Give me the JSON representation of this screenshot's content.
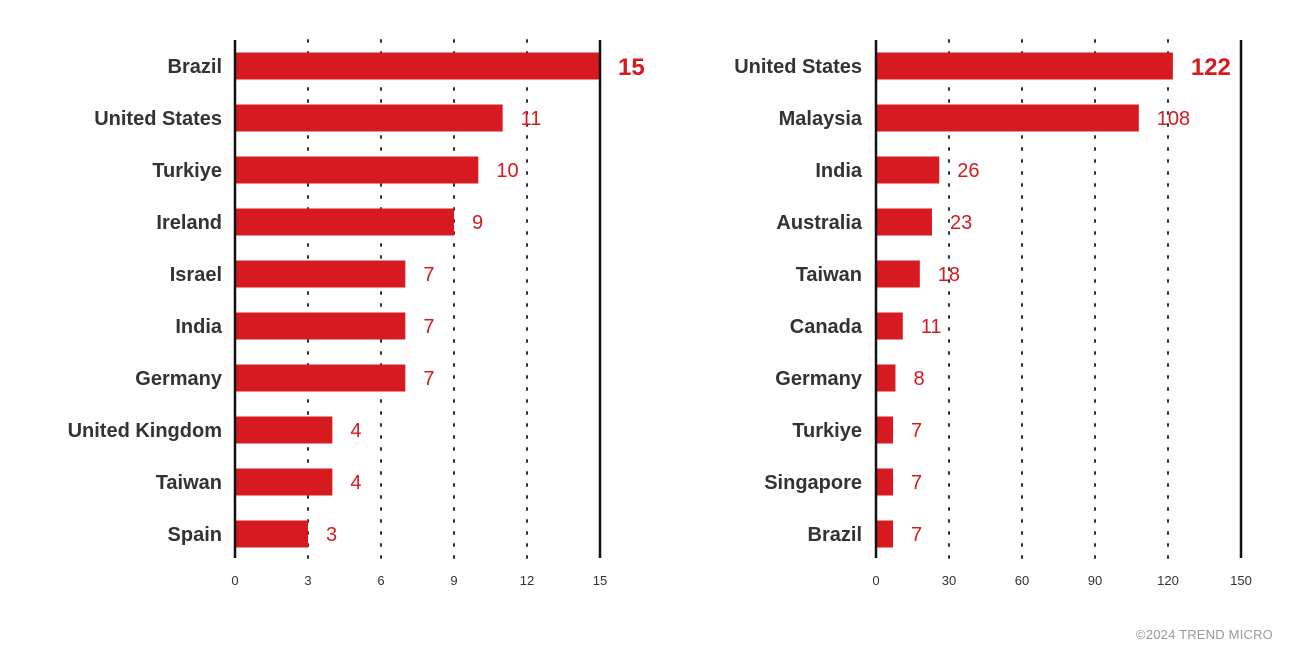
{
  "chart_data": [
    {
      "type": "bar",
      "orientation": "horizontal",
      "categories": [
        "Brazil",
        "United States",
        "Turkiye",
        "Ireland",
        "Israel",
        "India",
        "Germany",
        "United Kingdom",
        "Taiwan",
        "Spain"
      ],
      "values": [
        15,
        11,
        10,
        9,
        7,
        7,
        7,
        4,
        4,
        3
      ],
      "xlim": [
        0,
        15
      ],
      "xticks": [
        0,
        3,
        6,
        9,
        12,
        15
      ],
      "grid": "vertical-dotted",
      "bar_color": "#d71920",
      "title": "",
      "xlabel": "",
      "ylabel": ""
    },
    {
      "type": "bar",
      "orientation": "horizontal",
      "categories": [
        "United States",
        "Malaysia",
        "India",
        "Australia",
        "Taiwan",
        "Canada",
        "Germany",
        "Turkiye",
        "Singapore",
        "Brazil"
      ],
      "values": [
        122,
        108,
        26,
        23,
        18,
        11,
        8,
        7,
        7,
        7
      ],
      "xlim": [
        0,
        150
      ],
      "xticks": [
        0,
        30,
        60,
        90,
        120,
        150
      ],
      "grid": "vertical-dotted",
      "bar_color": "#d71920",
      "title": "",
      "xlabel": "",
      "ylabel": ""
    }
  ],
  "footer": {
    "credit": "©2024 TREND MICRO"
  }
}
